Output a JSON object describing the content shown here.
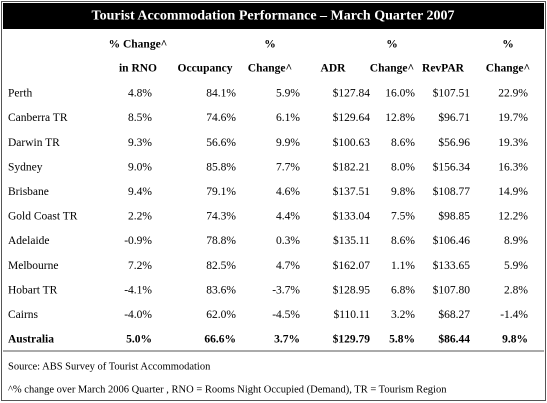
{
  "title": "Tourist Accommodation Performance – March Quarter 2007",
  "table": {
    "header": [
      [
        "",
        ""
      ],
      [
        "% Change^",
        "in RNO"
      ],
      [
        "",
        "Occupancy"
      ],
      [
        "%",
        "Change^"
      ],
      [
        "",
        "ADR"
      ],
      [
        "%",
        "Change^"
      ],
      [
        "",
        "RevPAR"
      ],
      [
        "%",
        "Change^"
      ]
    ],
    "rows": [
      [
        "Perth",
        "4.8%",
        "84.1%",
        "5.9%",
        "$127.84",
        "16.0%",
        "$107.51",
        "22.9%"
      ],
      [
        "Canberra TR",
        "8.5%",
        "74.6%",
        "6.1%",
        "$129.64",
        "12.8%",
        "$96.71",
        "19.7%"
      ],
      [
        "Darwin TR",
        "9.3%",
        "56.6%",
        "9.9%",
        "$100.63",
        "8.6%",
        "$56.96",
        "19.3%"
      ],
      [
        "Sydney",
        "9.0%",
        "85.8%",
        "7.7%",
        "$182.21",
        "8.0%",
        "$156.34",
        "16.3%"
      ],
      [
        "Brisbane",
        "9.4%",
        "79.1%",
        "4.6%",
        "$137.51",
        "9.8%",
        "$108.77",
        "14.9%"
      ],
      [
        "Gold Coast TR",
        "2.2%",
        "74.3%",
        "4.4%",
        "$133.04",
        "7.5%",
        "$98.85",
        "12.2%"
      ],
      [
        "Adelaide",
        "-0.9%",
        "78.8%",
        "0.3%",
        "$135.11",
        "8.6%",
        "$106.46",
        "8.9%"
      ],
      [
        "Melbourne",
        "7.2%",
        "82.5%",
        "4.7%",
        "$162.07",
        "1.1%",
        "$133.65",
        "5.9%"
      ],
      [
        "Hobart TR",
        "-4.1%",
        "83.6%",
        "-3.7%",
        "$128.95",
        "6.8%",
        "$107.80",
        "2.8%"
      ],
      [
        "Cairns",
        "-4.0%",
        "62.0%",
        "-4.5%",
        "$110.11",
        "3.2%",
        "$68.27",
        "-1.4%"
      ]
    ],
    "total": [
      "Australia",
      "5.0%",
      "66.6%",
      "3.7%",
      "$129.79",
      "5.8%",
      "$86.44",
      "9.8%"
    ]
  },
  "footnotes": [
    "Source: ABS Survey of Tourist Accommodation",
    "^% change over March 2006 Quarter , RNO = Rooms Night Occupied (Demand), TR = Tourism Region"
  ]
}
